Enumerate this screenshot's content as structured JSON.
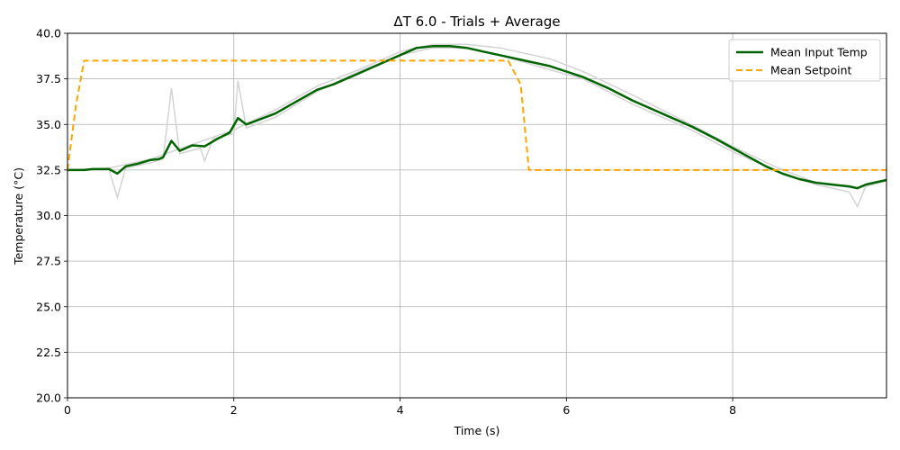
{
  "chart_data": {
    "type": "line",
    "title": "ΔT 6.0 - Trials + Average",
    "xlabel": "Time (s)",
    "ylabel": "Temperature (°C)",
    "xlim": [
      0,
      9.85
    ],
    "ylim": [
      20,
      40
    ],
    "xticks": [
      0,
      2,
      4,
      6,
      8
    ],
    "yticks": [
      20.0,
      22.5,
      25.0,
      27.5,
      30.0,
      32.5,
      35.0,
      37.5,
      40.0
    ],
    "grid": true,
    "legend_position": "top-right",
    "series": [
      {
        "name": "Mean Input Temp",
        "color": "#006400",
        "style": "solid",
        "x": [
          0,
          0.2,
          0.3,
          0.5,
          0.6,
          0.7,
          0.85,
          1.0,
          1.1,
          1.15,
          1.25,
          1.35,
          1.5,
          1.65,
          1.8,
          1.95,
          2.05,
          2.15,
          2.5,
          3.0,
          3.2,
          3.5,
          3.8,
          4.0,
          4.2,
          4.4,
          4.6,
          4.8,
          5.0,
          5.2,
          5.5,
          5.8,
          6.0,
          6.2,
          6.5,
          6.8,
          7.0,
          7.3,
          7.5,
          7.8,
          8.0,
          8.2,
          8.4,
          8.6,
          8.8,
          9.0,
          9.2,
          9.4,
          9.5,
          9.6,
          9.7,
          9.85
        ],
        "y": [
          32.5,
          32.5,
          32.55,
          32.55,
          32.3,
          32.7,
          32.85,
          33.05,
          33.1,
          33.2,
          34.1,
          33.55,
          33.85,
          33.8,
          34.2,
          34.55,
          35.35,
          35.0,
          35.6,
          36.9,
          37.2,
          37.8,
          38.4,
          38.8,
          39.2,
          39.3,
          39.3,
          39.2,
          39.0,
          38.8,
          38.5,
          38.2,
          37.9,
          37.6,
          37.0,
          36.3,
          35.9,
          35.3,
          34.9,
          34.2,
          33.7,
          33.2,
          32.7,
          32.3,
          32.0,
          31.8,
          31.7,
          31.6,
          31.5,
          31.7,
          31.8,
          31.95
        ]
      },
      {
        "name": "Mean Setpoint",
        "color": "#FFA500",
        "style": "dashed",
        "x": [
          0,
          0.1,
          0.2,
          5.3,
          5.45,
          5.55,
          9.85
        ],
        "y": [
          32.5,
          36.0,
          38.5,
          38.5,
          37.2,
          32.5,
          32.5
        ]
      }
    ],
    "background_trials": {
      "color": "#d3d3d3",
      "lines": [
        {
          "x": [
            0,
            0.5,
            0.6,
            0.7,
            1.0,
            1.15,
            1.25,
            1.35,
            1.6,
            1.65,
            1.75,
            2.0,
            2.05,
            2.15,
            2.5,
            3.0,
            3.5,
            4.0,
            4.4,
            4.8,
            5.2,
            5.8,
            6.2,
            6.8,
            7.5,
            8.0,
            8.5,
            9.0,
            9.4,
            9.5,
            9.6,
            9.85
          ],
          "y": [
            32.5,
            32.5,
            31.0,
            32.6,
            32.9,
            33.1,
            37.0,
            33.4,
            33.7,
            33.0,
            34.2,
            34.5,
            37.4,
            34.8,
            35.4,
            36.8,
            37.9,
            38.8,
            39.2,
            39.2,
            38.8,
            38.0,
            37.5,
            36.1,
            34.7,
            33.5,
            32.5,
            31.7,
            31.3,
            30.5,
            31.6,
            31.9
          ]
        },
        {
          "x": [
            0,
            0.5,
            1.0,
            1.5,
            2.0,
            2.5,
            3.0,
            3.5,
            4.0,
            4.4,
            4.8,
            5.2,
            5.8,
            6.2,
            6.8,
            7.5,
            8.0,
            8.5,
            9.0,
            9.5,
            9.85
          ],
          "y": [
            32.5,
            32.6,
            33.1,
            33.9,
            34.7,
            35.8,
            37.1,
            38.0,
            39.0,
            39.4,
            39.4,
            39.2,
            38.6,
            37.9,
            36.6,
            35.0,
            33.8,
            32.7,
            31.8,
            31.5,
            31.9
          ]
        }
      ]
    }
  }
}
